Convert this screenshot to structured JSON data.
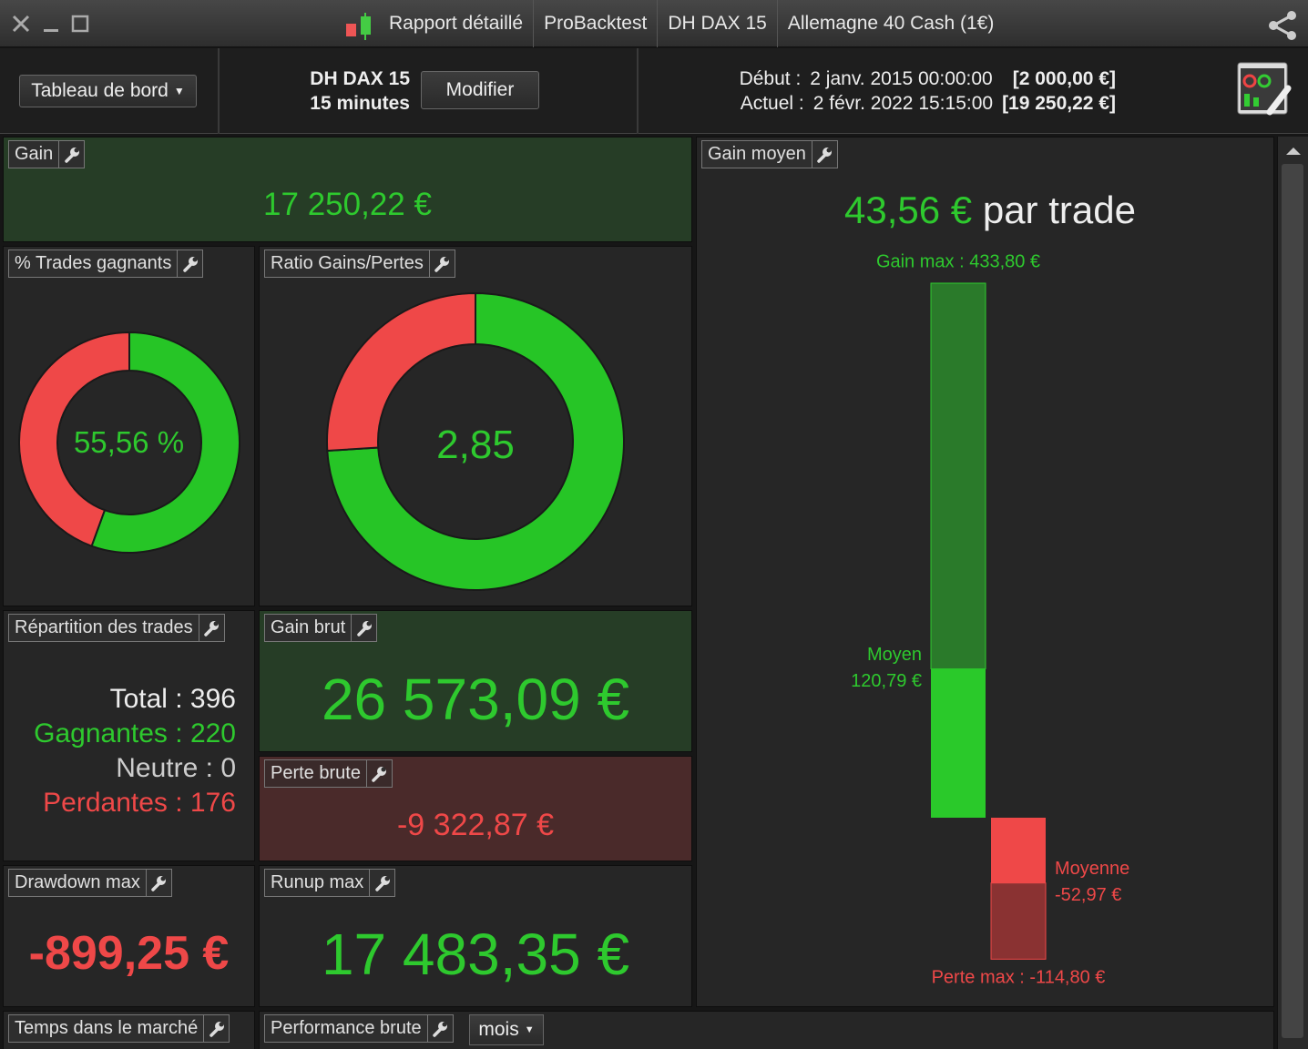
{
  "window": {
    "tabs": [
      "Rapport détaillé",
      "ProBacktest",
      "DH DAX 15",
      "Allemagne 40 Cash (1€)"
    ]
  },
  "toolbar": {
    "dashboard": "Tableau de bord",
    "system": "DH DAX 15",
    "timeframe": "15 minutes",
    "edit_button": "Modifier",
    "start_label": "Début :",
    "start_date": "2 janv. 2015 00:00:00",
    "start_capital": "[2 000,00 €]",
    "current_label": "Actuel :",
    "current_date": "2 févr. 2022 15:15:00",
    "current_capital": "[19 250,22 €]"
  },
  "panels": {
    "gain": {
      "title": "Gain",
      "value": "17 250,22 €"
    },
    "win_rate": {
      "title": "% Trades gagnants",
      "value": 55.56,
      "value_label": "55,56 %"
    },
    "ratio": {
      "title": "Ratio Gains/Pertes",
      "value": 2.85,
      "value_label": "2,85"
    },
    "distribution": {
      "title": "Répartition des trades",
      "lines": [
        "Total : 396",
        "Gagnantes : 220",
        "Neutre : 0",
        "Perdantes : 176"
      ]
    },
    "gross_gain": {
      "title": "Gain brut",
      "value": "26 573,09 €"
    },
    "gross_loss": {
      "title": "Perte brute",
      "value": "-9 322,87 €"
    },
    "max_drawdown": {
      "title": "Drawdown max",
      "value": "-899,25 €"
    },
    "max_runup": {
      "title": "Runup max",
      "value": "17 483,35 €"
    },
    "time_in_market": {
      "title": "Temps dans le marché"
    },
    "gross_performance": {
      "title": "Performance brute",
      "period": "mois"
    },
    "average_gain": {
      "title": "Gain moyen",
      "value": "43,56 €",
      "unit": "par trade",
      "max_gain": {
        "label": "Gain max : 433,80 €",
        "value": 433.8
      },
      "avg_win": {
        "label": "Moyen",
        "value": 120.79,
        "value_label": "120,79 €"
      },
      "avg_loss": {
        "label": "Moyenne",
        "value": -52.97,
        "value_label": "-52,97 €"
      },
      "max_loss": {
        "label": "Perte max : -114,80 €",
        "value": -114.8
      }
    }
  }
}
